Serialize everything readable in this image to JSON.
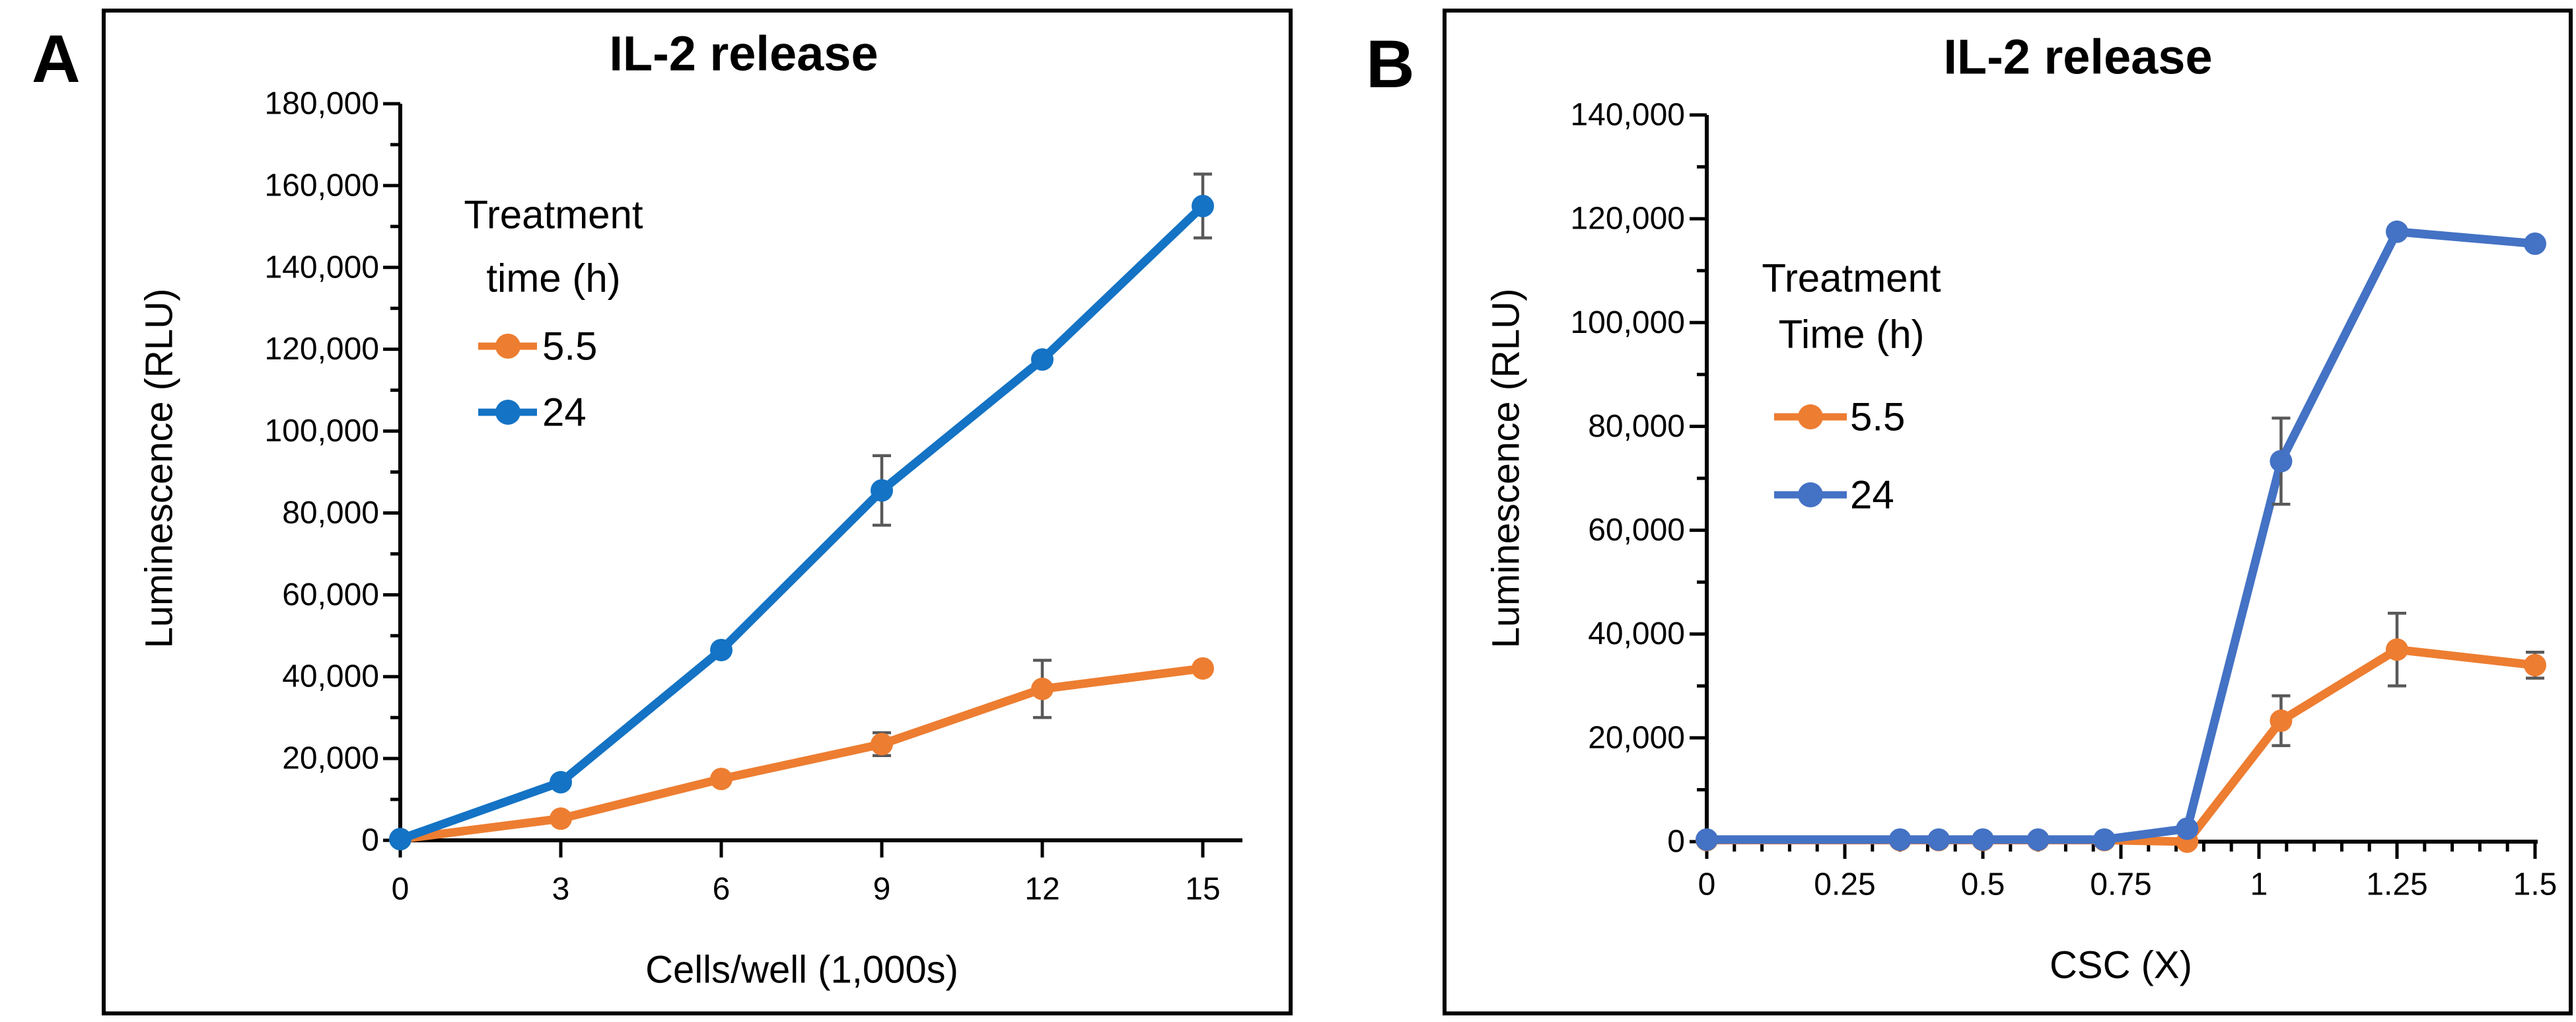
{
  "figure": {
    "background": "#ffffff",
    "error_bar_color": "#595959",
    "axis_color": "#000000"
  },
  "panels": [
    {
      "label": "A",
      "chart_data": {
        "type": "line",
        "title": "IL-2 release",
        "xlabel": "Cells/well (1,000s)",
        "ylabel": "Luminescence (RLU)",
        "xlim": [
          0,
          15.7
        ],
        "ylim": [
          0,
          180000
        ],
        "grid": "off",
        "legend_position": "upper-left-inside",
        "legend_title_lines": [
          "Treatment",
          "time (h)"
        ],
        "x_tick_values": [
          0,
          3,
          6,
          9,
          12,
          15
        ],
        "x_tick_labels": [
          "0",
          "3",
          "6",
          "9",
          "12",
          "15"
        ],
        "x_minor_step": null,
        "y_tick_values": [
          0,
          20000,
          40000,
          60000,
          80000,
          100000,
          120000,
          140000,
          160000,
          180000
        ],
        "y_tick_labels": [
          "0",
          "20,000",
          "40,000",
          "60,000",
          "80,000",
          "100,000",
          "120,000",
          "140,000",
          "160,000",
          "180,000"
        ],
        "y_minor_step": 10000,
        "series": [
          {
            "name": "5.5",
            "color": "#ED7D31",
            "x": [
              0,
              3,
              6,
              9,
              12,
              15
            ],
            "values": [
              300,
              5300,
              15000,
              23500,
              37000,
              42000
            ],
            "errors": [
              0,
              0,
              0,
              2800,
              7000,
              1200
            ]
          },
          {
            "name": "24",
            "color": "#1473C4",
            "x": [
              0,
              3,
              6,
              9,
              12,
              15
            ],
            "values": [
              300,
              14200,
              46500,
              85500,
              117500,
              155000
            ],
            "errors": [
              0,
              0,
              0,
              8500,
              0,
              7800
            ]
          }
        ]
      }
    },
    {
      "label": "B",
      "chart_data": {
        "type": "line",
        "title": "IL-2 release",
        "xlabel": "CSC (X)",
        "ylabel": "Luminescence (RLU)",
        "xlim": [
          0,
          1.505
        ],
        "ylim": [
          0,
          140000
        ],
        "grid": "off",
        "legend_position": "upper-left-inside",
        "legend_title_lines": [
          "Treatment",
          "Time (h)"
        ],
        "x_tick_values": [
          0,
          0.25,
          0.5,
          0.75,
          1,
          1.25,
          1.5
        ],
        "x_tick_labels": [
          "0",
          "0.25",
          "0.5",
          "0.75",
          "1",
          "1.25",
          "1.5"
        ],
        "x_minor_step": 0.05,
        "y_tick_values": [
          0,
          20000,
          40000,
          60000,
          80000,
          100000,
          120000,
          140000
        ],
        "y_tick_labels": [
          "0",
          "20,000",
          "40,000",
          "60,000",
          "80,000",
          "100,000",
          "120,000",
          "140,000"
        ],
        "y_minor_step": 10000,
        "series": [
          {
            "name": "5.5",
            "color": "#ED7D31",
            "x": [
              0,
              0.35,
              0.42,
              0.5,
              0.6,
              0.72,
              0.87,
              1.04,
              1.25,
              1.5
            ],
            "values": [
              300,
              300,
              300,
              300,
              300,
              300,
              0,
              23300,
              37000,
              34000
            ],
            "errors": [
              0,
              0,
              0,
              0,
              0,
              0,
              0,
              4800,
              7000,
              2500
            ]
          },
          {
            "name": "24",
            "color": "#4472C4",
            "x": [
              0,
              0.35,
              0.42,
              0.5,
              0.6,
              0.72,
              0.87,
              1.04,
              1.25,
              1.5
            ],
            "values": [
              400,
              400,
              400,
              400,
              400,
              400,
              2500,
              73300,
              117500,
              115200
            ],
            "errors": [
              0,
              0,
              0,
              0,
              0,
              0,
              0,
              8300,
              0,
              0
            ]
          }
        ]
      }
    }
  ]
}
